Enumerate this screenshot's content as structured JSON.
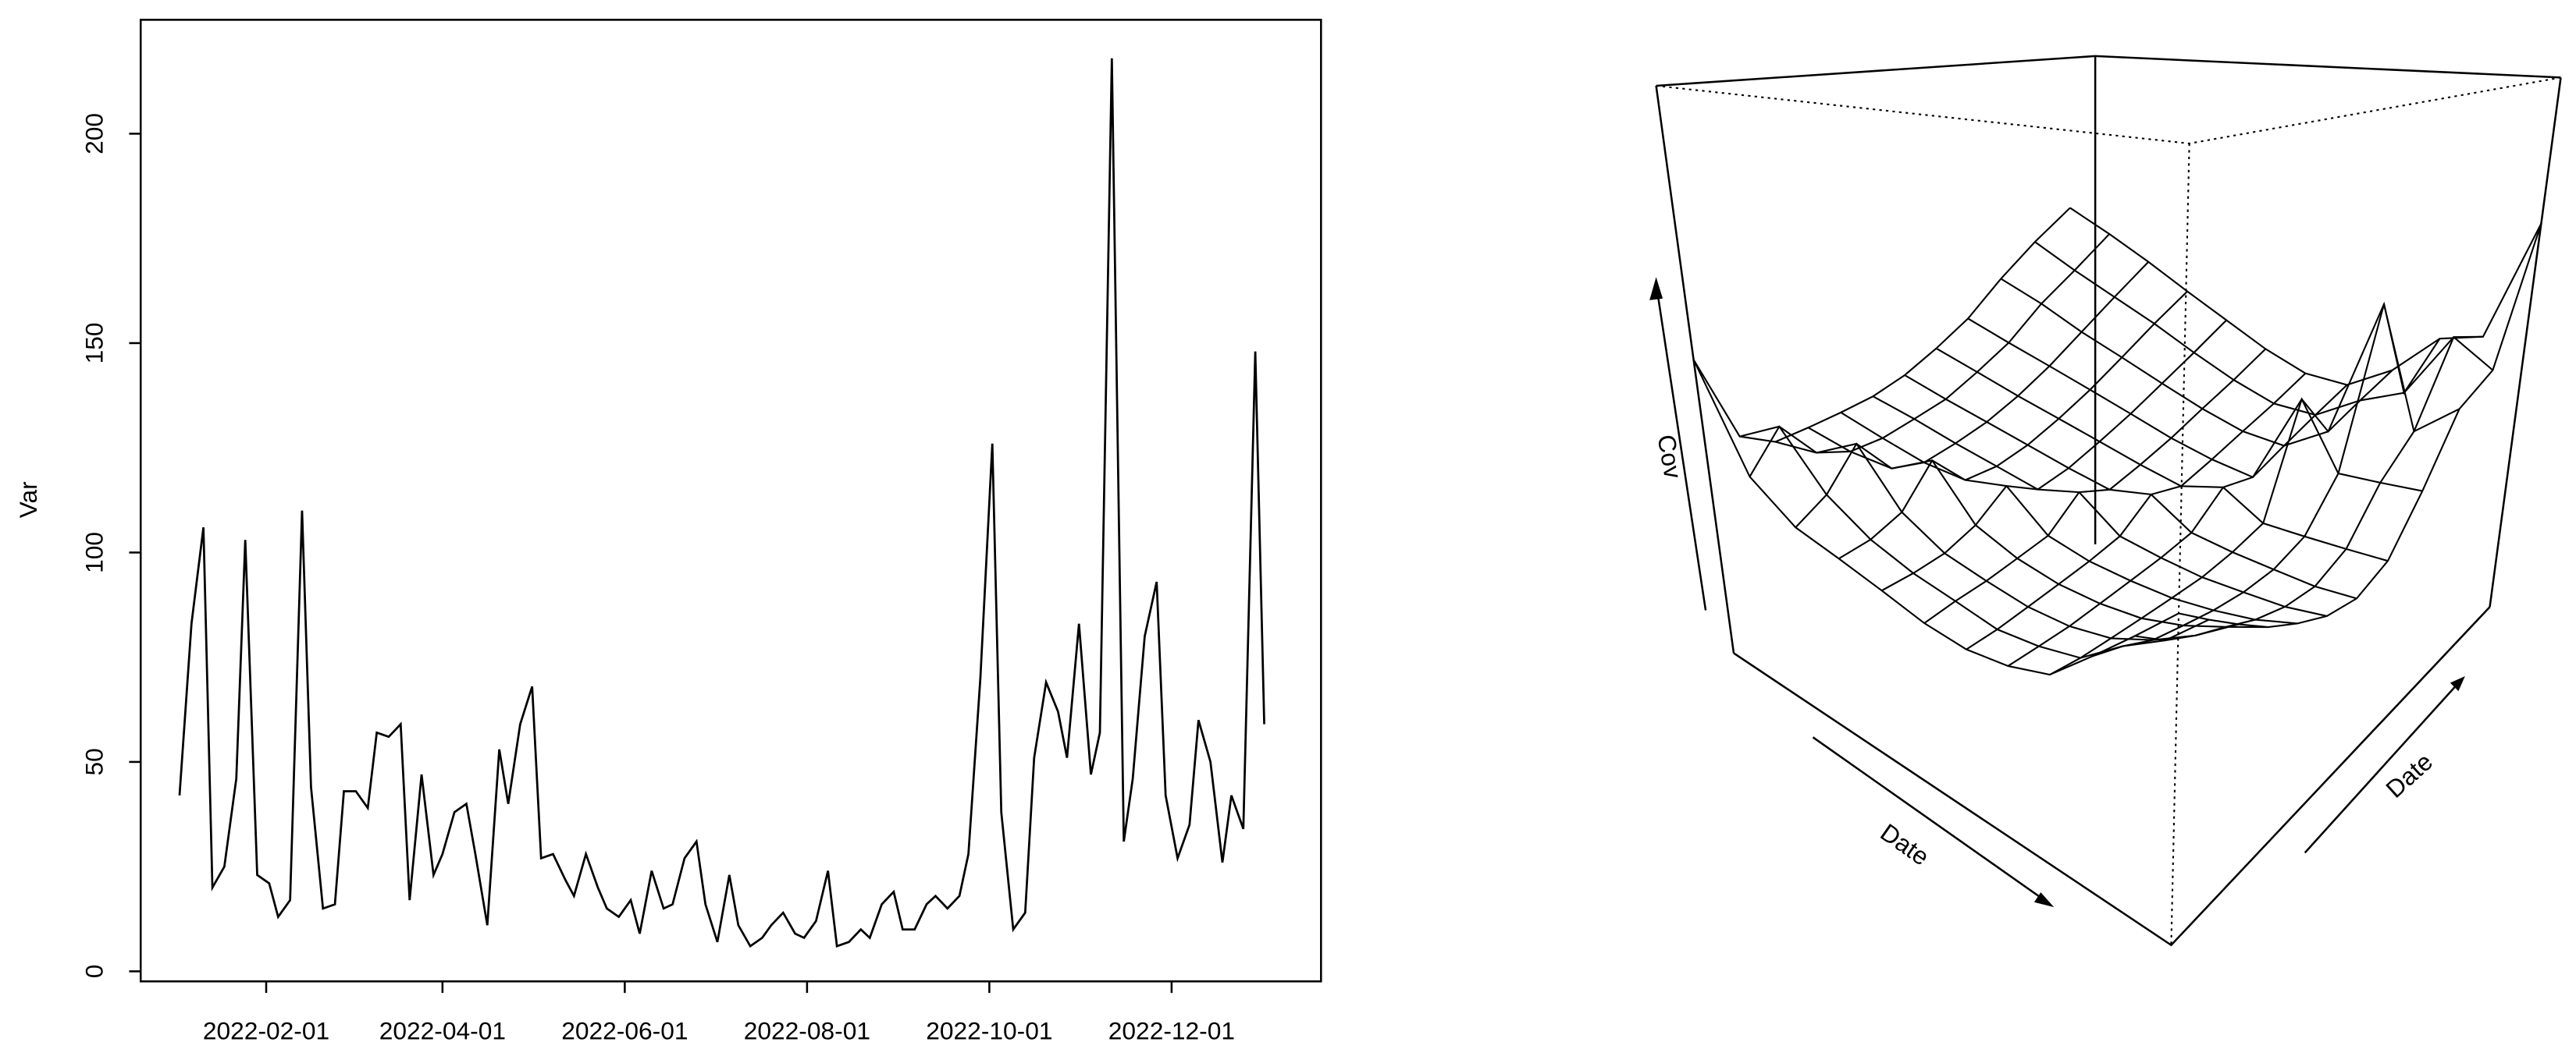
{
  "chart_data": [
    {
      "type": "line",
      "ylabel": "Var",
      "color": "#000000",
      "x": [
        "2022-01-03",
        "2022-01-07",
        "2022-01-11",
        "2022-01-14",
        "2022-01-18",
        "2022-01-22",
        "2022-01-25",
        "2022-01-29",
        "2022-02-02",
        "2022-02-05",
        "2022-02-09",
        "2022-02-13",
        "2022-02-16",
        "2022-02-20",
        "2022-02-24",
        "2022-02-27",
        "2022-03-03",
        "2022-03-07",
        "2022-03-10",
        "2022-03-14",
        "2022-03-18",
        "2022-03-21",
        "2022-03-25",
        "2022-03-29",
        "2022-04-01",
        "2022-04-05",
        "2022-04-09",
        "2022-04-12",
        "2022-04-16",
        "2022-04-20",
        "2022-04-23",
        "2022-04-27",
        "2022-05-01",
        "2022-05-04",
        "2022-05-08",
        "2022-05-12",
        "2022-05-15",
        "2022-05-19",
        "2022-05-23",
        "2022-05-26",
        "2022-05-30",
        "2022-06-03",
        "2022-06-06",
        "2022-06-10",
        "2022-06-14",
        "2022-06-17",
        "2022-06-21",
        "2022-06-25",
        "2022-06-28",
        "2022-07-02",
        "2022-07-06",
        "2022-07-09",
        "2022-07-13",
        "2022-07-17",
        "2022-07-20",
        "2022-07-24",
        "2022-07-28",
        "2022-07-31",
        "2022-08-04",
        "2022-08-08",
        "2022-08-11",
        "2022-08-15",
        "2022-08-19",
        "2022-08-22",
        "2022-08-26",
        "2022-08-30",
        "2022-09-02",
        "2022-09-06",
        "2022-09-10",
        "2022-09-13",
        "2022-09-17",
        "2022-09-21",
        "2022-09-24",
        "2022-09-28",
        "2022-10-02",
        "2022-10-05",
        "2022-10-09",
        "2022-10-13",
        "2022-10-16",
        "2022-10-20",
        "2022-10-24",
        "2022-10-27",
        "2022-10-31",
        "2022-11-04",
        "2022-11-07",
        "2022-11-11",
        "2022-11-15",
        "2022-11-18",
        "2022-11-22",
        "2022-11-26",
        "2022-11-29",
        "2022-12-03",
        "2022-12-07",
        "2022-12-10",
        "2022-12-14",
        "2022-12-18",
        "2022-12-21",
        "2022-12-25",
        "2022-12-29",
        "2023-01-01"
      ],
      "values": [
        42,
        83,
        106,
        20,
        25,
        46,
        103,
        23,
        21,
        13,
        17,
        110,
        44,
        15,
        16,
        43,
        43,
        39,
        57,
        56,
        59,
        17,
        47,
        23,
        28,
        38,
        40,
        28,
        11,
        53,
        40,
        59,
        68,
        27,
        28,
        22,
        18,
        28,
        20,
        15,
        13,
        17,
        9,
        24,
        15,
        16,
        27,
        31,
        16,
        7,
        23,
        11,
        6,
        8,
        11,
        14,
        9,
        8,
        12,
        24,
        6,
        7,
        10,
        8,
        16,
        19,
        10,
        10,
        16,
        18,
        15,
        18,
        28,
        70,
        126,
        38,
        10,
        14,
        51,
        69,
        62,
        51,
        83,
        47,
        57,
        218,
        31,
        46,
        80,
        93,
        42,
        27,
        35,
        60,
        50,
        26,
        42,
        34,
        148,
        59
      ],
      "xlim": [
        "2021-12-21",
        "2023-01-20"
      ],
      "xticks": [
        "2022-02-01",
        "2022-04-01",
        "2022-06-01",
        "2022-08-01",
        "2022-10-01",
        "2022-12-01"
      ],
      "ylim": [
        -2.4,
        227.2
      ],
      "yticks": [
        0,
        50,
        100,
        150,
        200
      ]
    },
    {
      "type": "surface",
      "xlabel": "Date",
      "ylabel": "Date",
      "zlabel": "Cov",
      "color": "#000000",
      "zlim": [
        -60,
        230
      ],
      "z": [
        [
          90,
          40,
          25,
          20,
          15,
          10,
          8,
          10,
          15,
          30,
          45,
          60
        ],
        [
          40,
          55,
          30,
          18,
          12,
          9,
          6,
          8,
          12,
          25,
          35,
          50
        ],
        [
          25,
          30,
          45,
          20,
          10,
          7,
          5,
          6,
          10,
          18,
          28,
          40
        ],
        [
          20,
          18,
          20,
          35,
          12,
          6,
          4,
          5,
          8,
          14,
          22,
          30
        ],
        [
          15,
          12,
          10,
          12,
          20,
          5,
          3,
          4,
          6,
          10,
          15,
          22
        ],
        [
          10,
          9,
          7,
          6,
          5,
          15,
          3,
          3,
          4,
          7,
          10,
          15
        ],
        [
          8,
          6,
          5,
          4,
          3,
          3,
          12,
          3,
          4,
          6,
          8,
          12
        ],
        [
          10,
          8,
          6,
          5,
          4,
          3,
          3,
          14,
          6,
          10,
          14,
          18
        ],
        [
          15,
          12,
          10,
          8,
          6,
          4,
          4,
          6,
          60,
          30,
          35,
          40
        ],
        [
          30,
          25,
          18,
          14,
          10,
          7,
          6,
          10,
          30,
          110,
          50,
          70
        ],
        [
          45,
          35,
          28,
          22,
          15,
          10,
          8,
          14,
          35,
          50,
          90,
          80
        ],
        [
          60,
          50,
          40,
          30,
          22,
          15,
          12,
          18,
          40,
          70,
          80,
          150
        ]
      ]
    }
  ]
}
